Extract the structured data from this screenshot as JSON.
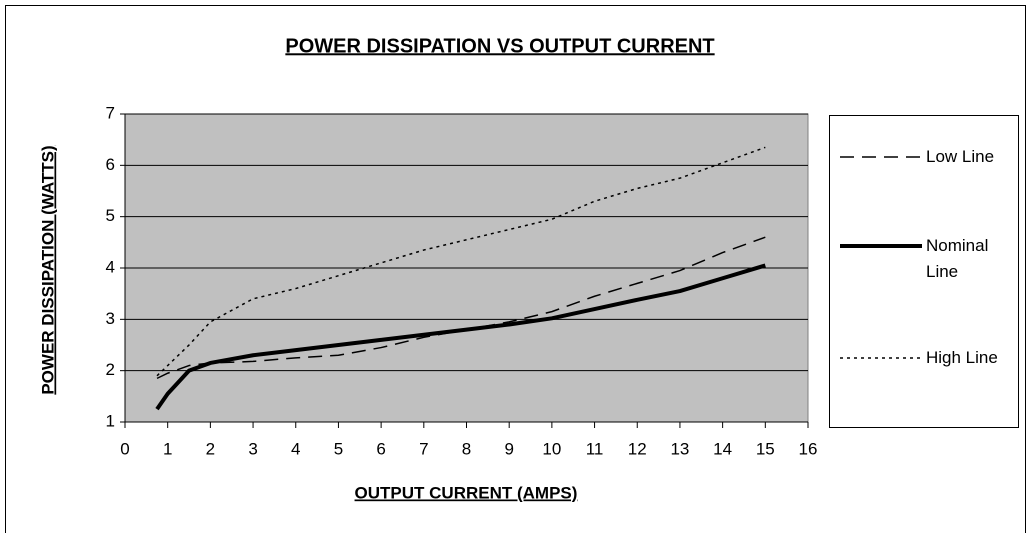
{
  "chart_data": {
    "type": "line",
    "title": "POWER DISSIPATION VS OUTPUT CURRENT",
    "x_label": "OUTPUT CURRENT (AMPS)",
    "y_label": "POWER DISSIPATION (WATTS)",
    "x": [
      0.75,
      1,
      1.5,
      2,
      3,
      4,
      5,
      6,
      7,
      8,
      9,
      10,
      11,
      12,
      13,
      14,
      15
    ],
    "series": [
      {
        "name": "Low Line",
        "color": "#000000",
        "line_style": "dashed",
        "values": [
          1.85,
          1.95,
          2.1,
          2.15,
          2.18,
          2.25,
          2.3,
          2.45,
          2.65,
          2.8,
          2.95,
          3.15,
          3.45,
          3.7,
          3.95,
          4.3,
          4.6
        ]
      },
      {
        "name": "Nominal Line",
        "color": "#000000",
        "line_style": "thick",
        "values": [
          1.25,
          1.55,
          2.0,
          2.15,
          2.3,
          2.4,
          2.5,
          2.6,
          2.7,
          2.8,
          2.9,
          3.02,
          3.2,
          3.38,
          3.55,
          3.8,
          4.05
        ]
      },
      {
        "name": "High Line",
        "color": "#000000",
        "line_style": "dotted",
        "values": [
          1.9,
          2.1,
          2.5,
          2.95,
          3.4,
          3.6,
          3.85,
          4.1,
          4.35,
          4.55,
          4.75,
          4.95,
          5.3,
          5.55,
          5.75,
          6.05,
          6.35
        ]
      }
    ],
    "xlim": [
      0,
      16
    ],
    "xticks": [
      0,
      1,
      2,
      3,
      4,
      5,
      6,
      7,
      8,
      9,
      10,
      11,
      12,
      13,
      14,
      15,
      16
    ],
    "ylim": [
      1,
      7
    ],
    "yticks": [
      1,
      2,
      3,
      4,
      5,
      6,
      7
    ],
    "grid": true,
    "plot_background": "#c0c0c0",
    "legend": "right"
  }
}
